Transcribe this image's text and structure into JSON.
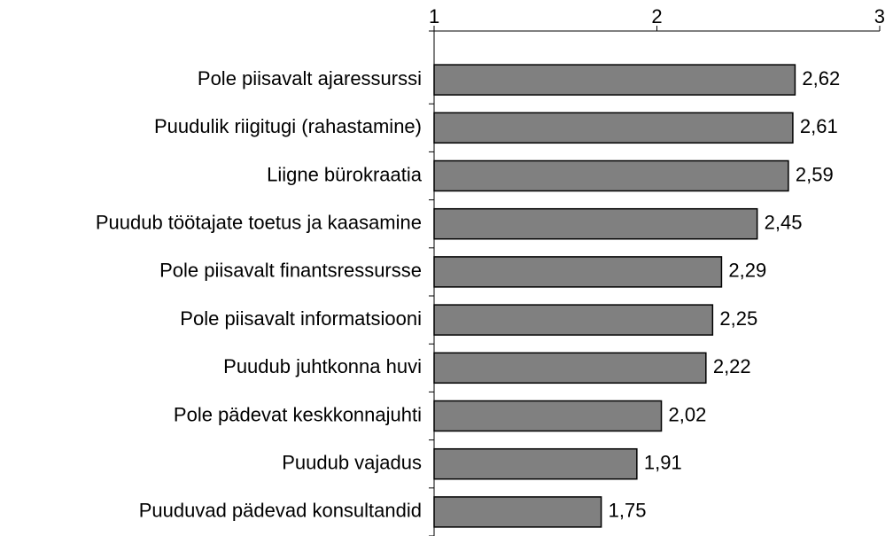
{
  "chart_data": {
    "type": "bar",
    "orientation": "horizontal",
    "categories": [
      "Pole piisavalt ajaressurssi",
      "Puudulik riigitugi (rahastamine)",
      "Liigne bürokraatia",
      "Puudub töötajate toetus ja kaasamine",
      "Pole piisavalt finantsressursse",
      "Pole piisavalt informatsiooni",
      "Puudub juhtkonna huvi",
      "Pole pädevat keskkonnajuhti",
      "Puudub vajadus",
      "Puuduvad pädevad konsultandid"
    ],
    "values": [
      2.62,
      2.61,
      2.59,
      2.45,
      2.29,
      2.25,
      2.22,
      2.02,
      1.91,
      1.75
    ],
    "value_labels": [
      "2,62",
      "2,61",
      "2,59",
      "2,45",
      "2,29",
      "2,25",
      "2,22",
      "2,02",
      "1,91",
      "1,75"
    ],
    "color": "#808080",
    "xlim": [
      1,
      3
    ],
    "xticks": [
      1,
      2,
      3
    ]
  }
}
